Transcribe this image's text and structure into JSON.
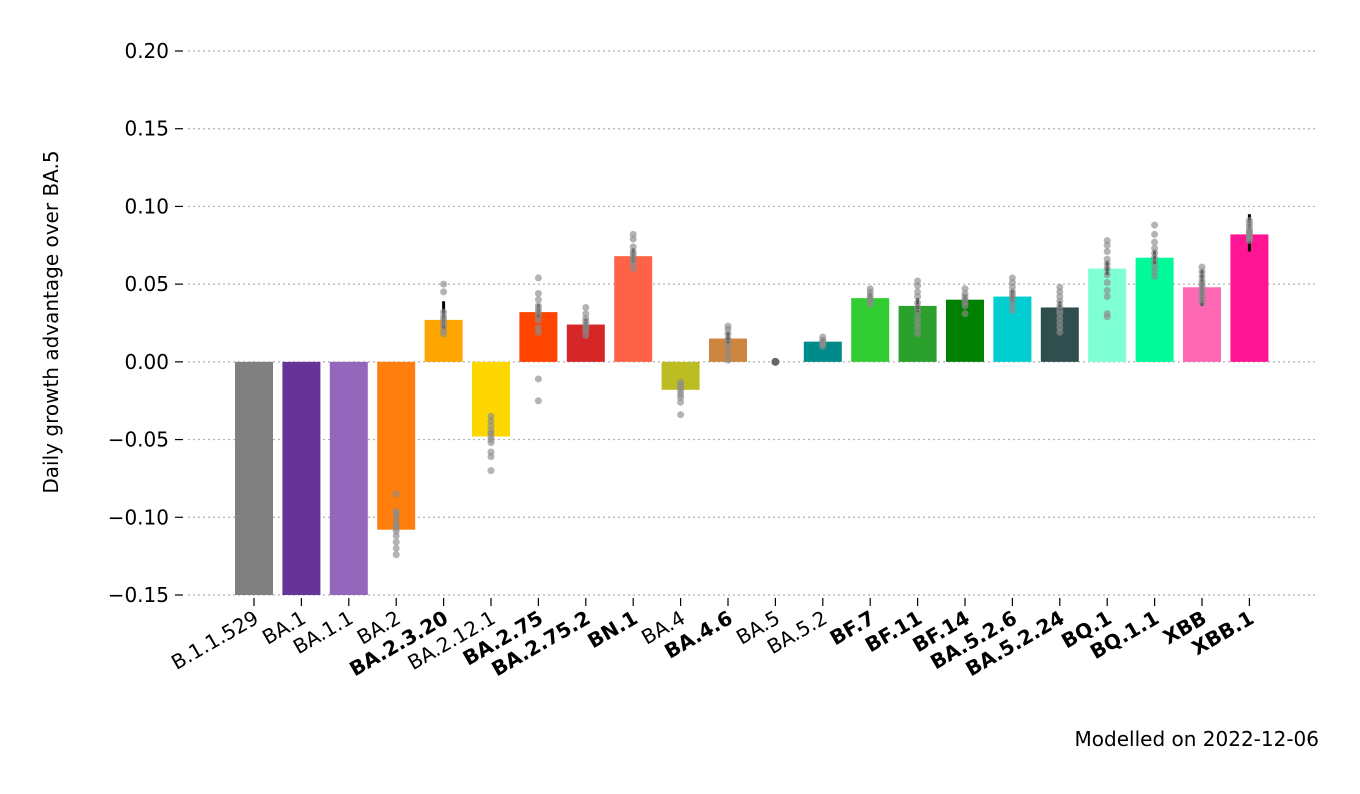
{
  "chart_data": {
    "type": "bar",
    "title": "",
    "xlabel": "",
    "ylabel": "Daily growth advantage over BA.5",
    "ylim": [
      -0.15,
      0.2
    ],
    "yticks": [
      -0.15,
      -0.1,
      -0.05,
      0.0,
      0.05,
      0.1,
      0.15,
      0.2
    ],
    "ytick_labels": [
      "−0.15",
      "−0.10",
      "−0.05",
      "0.00",
      "0.05",
      "0.10",
      "0.15",
      "0.20"
    ],
    "grid": "horizontal dotted",
    "annotation": "Modelled on 2022-12-06",
    "categories": [
      "B.1.1.529",
      "BA.1",
      "BA.1.1",
      "BA.2",
      "BA.2.3.20",
      "BA.2.12.1",
      "BA.2.75",
      "BA.2.75.2",
      "BN.1",
      "BA.4",
      "BA.4.6",
      "BA.5",
      "BA.5.2",
      "BF.7",
      "BF.11",
      "BF.14",
      "BA.5.2.6",
      "BA.5.2.24",
      "BQ.1",
      "BQ.1.1",
      "XBB",
      "XBB.1"
    ],
    "bold": [
      false,
      false,
      false,
      false,
      true,
      false,
      true,
      true,
      true,
      false,
      true,
      false,
      false,
      true,
      true,
      true,
      true,
      true,
      true,
      true,
      true,
      true
    ],
    "values": [
      -0.15,
      -0.15,
      -0.15,
      -0.108,
      0.027,
      -0.048,
      0.032,
      0.024,
      0.068,
      -0.018,
      0.015,
      0.0,
      0.013,
      0.041,
      0.036,
      0.04,
      0.042,
      0.035,
      0.06,
      0.067,
      0.048,
      0.082
    ],
    "error_low": [
      null,
      null,
      null,
      null,
      0.021,
      null,
      0.028,
      0.021,
      0.064,
      null,
      0.012,
      null,
      0.011,
      0.039,
      0.032,
      0.038,
      0.039,
      0.031,
      0.056,
      0.063,
      0.036,
      0.071
    ],
    "error_high": [
      null,
      null,
      null,
      null,
      0.039,
      null,
      0.037,
      0.028,
      0.073,
      null,
      0.019,
      null,
      0.015,
      0.044,
      0.041,
      0.043,
      0.046,
      0.039,
      0.065,
      0.072,
      0.059,
      0.095
    ],
    "colors": [
      "#808080",
      "#663399",
      "#9467bd",
      "#ff7f0e",
      "#ffa500",
      "#ffd700",
      "#ff4500",
      "#d62728",
      "#ff6347",
      "#bcbd22",
      "#cd853f",
      "#696969",
      "#008b8b",
      "#32cd32",
      "#2ca02c",
      "#008000",
      "#00ced1",
      "#2f4f4f",
      "#7fffd4",
      "#00fa9a",
      "#ff69b4",
      "#ff1493"
    ],
    "samples": [
      [],
      [],
      [],
      [
        -0.085,
        -0.096,
        -0.098,
        -0.1,
        -0.103,
        -0.105,
        -0.107,
        -0.109,
        -0.112,
        -0.116,
        -0.12,
        -0.124
      ],
      [
        0.05,
        0.045,
        0.032,
        0.029,
        0.027,
        0.025,
        0.023,
        0.02,
        0.018
      ],
      [
        -0.035,
        -0.038,
        -0.041,
        -0.044,
        -0.046,
        -0.048,
        -0.05,
        -0.052,
        -0.058,
        -0.061,
        -0.07
      ],
      [
        0.054,
        0.044,
        0.04,
        0.036,
        0.034,
        0.032,
        0.03,
        0.027,
        0.022,
        0.019,
        -0.011,
        -0.025
      ],
      [
        0.035,
        0.031,
        0.028,
        0.026,
        0.024,
        0.022,
        0.02,
        0.017
      ],
      [
        0.082,
        0.079,
        0.074,
        0.071,
        0.069,
        0.067,
        0.065,
        0.063,
        0.06
      ],
      [
        -0.013,
        -0.015,
        -0.017,
        -0.019,
        -0.021,
        -0.023,
        -0.026,
        -0.034
      ],
      [
        0.023,
        0.021,
        0.018,
        0.015,
        0.012,
        0.009,
        0.005,
        0.001
      ],
      [
        0.0
      ],
      [
        0.016,
        0.014,
        0.013,
        0.012,
        0.011,
        0.01
      ],
      [
        0.047,
        0.045,
        0.043,
        0.041,
        0.04,
        0.039,
        0.037
      ],
      [
        0.052,
        0.049,
        0.045,
        0.042,
        0.038,
        0.035,
        0.032,
        0.028,
        0.025,
        0.022,
        0.018
      ],
      [
        0.047,
        0.044,
        0.042,
        0.04,
        0.038,
        0.036,
        0.031
      ],
      [
        0.054,
        0.051,
        0.048,
        0.045,
        0.043,
        0.041,
        0.039,
        0.036,
        0.033
      ],
      [
        0.048,
        0.045,
        0.042,
        0.039,
        0.036,
        0.033,
        0.031,
        0.028,
        0.025,
        0.022,
        0.019
      ],
      [
        0.078,
        0.075,
        0.071,
        0.066,
        0.063,
        0.06,
        0.056,
        0.051,
        0.046,
        0.042,
        0.031,
        0.029
      ],
      [
        0.088,
        0.082,
        0.077,
        0.073,
        0.07,
        0.067,
        0.064,
        0.061,
        0.058,
        0.055
      ],
      [
        0.061,
        0.058,
        0.055,
        0.052,
        0.05,
        0.048,
        0.046,
        0.044,
        0.042,
        0.04,
        0.038
      ],
      [
        0.091,
        0.089,
        0.087,
        0.085,
        0.084,
        0.083,
        0.082,
        0.081,
        0.08,
        0.079,
        0.078
      ]
    ]
  }
}
